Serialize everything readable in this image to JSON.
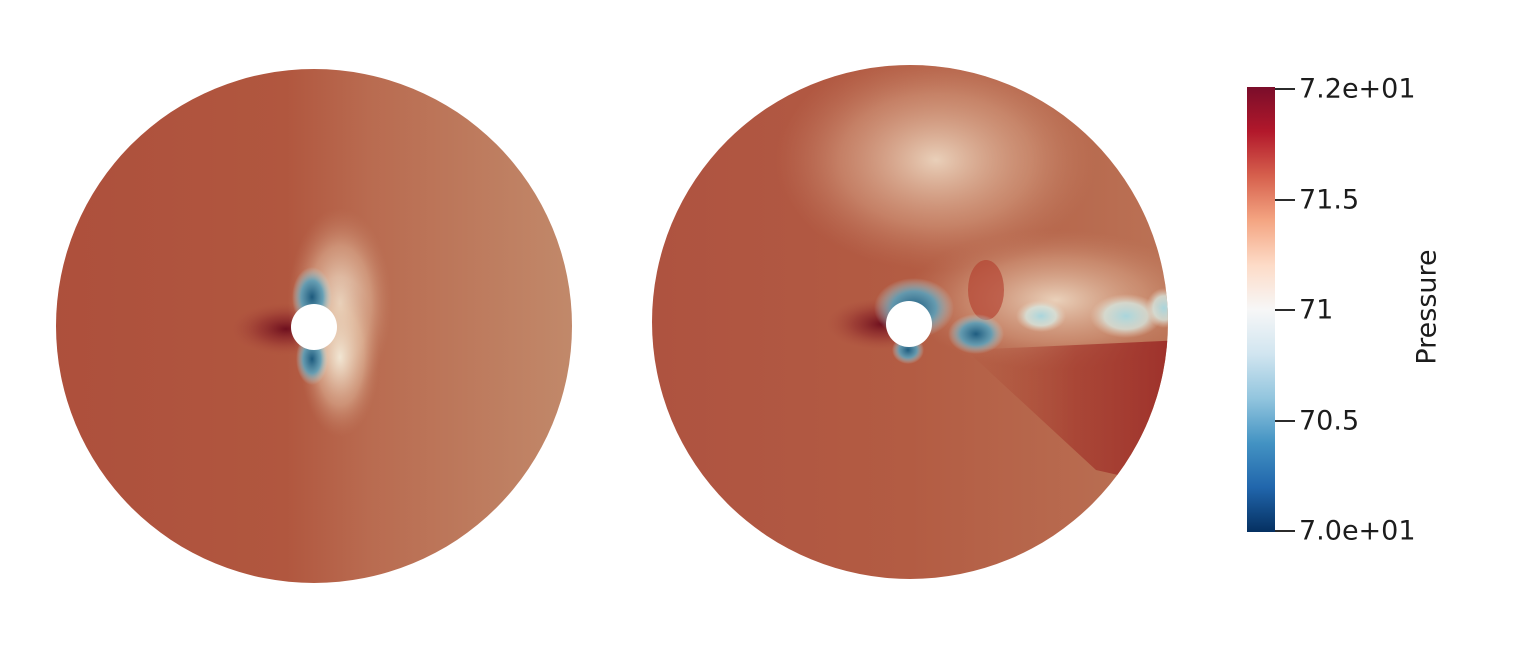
{
  "colors": {
    "field_base": "#b9674c",
    "field_dark": "#7b1d25",
    "field_light": "#e8c3a6",
    "low_blue": "#2f6b8f",
    "pale_blue": "#bfe2e6",
    "background": "#ffffff"
  },
  "colorbar": {
    "title": "Pressure",
    "min": 70.0,
    "max": 72.0,
    "ticks": [
      {
        "value": 72.0,
        "label": "7.2e+01"
      },
      {
        "value": 71.5,
        "label": "71.5"
      },
      {
        "value": 71.0,
        "label": "71"
      },
      {
        "value": 70.5,
        "label": "70.5"
      },
      {
        "value": 70.0,
        "label": "7.0e+01"
      }
    ],
    "stops": [
      "#7a0d2a",
      "#b2182b",
      "#d6604d",
      "#f4a582",
      "#fddbc7",
      "#f7f7f7",
      "#d1e5f0",
      "#92c5de",
      "#4393c3",
      "#2166ac",
      "#053061"
    ]
  },
  "views": [
    {
      "id": "left",
      "description_key": "steady"
    },
    {
      "id": "right",
      "description_key": "wake"
    }
  ]
}
